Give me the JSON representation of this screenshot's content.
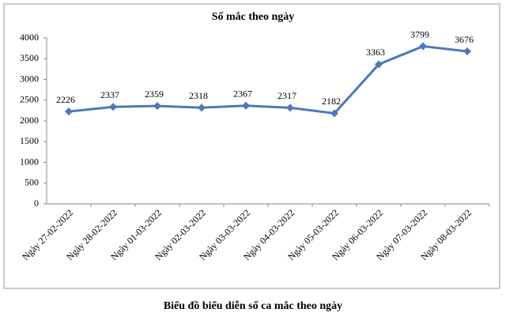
{
  "chart_data": {
    "type": "line",
    "title": "Số mắc theo ngày",
    "caption": "Biểu đồ biểu diễn số ca mắc theo ngày",
    "categories": [
      "Ngày 27-02-2022",
      "Ngày 28-02-2022",
      "Ngày 01-03-2022",
      "Ngày 02-03-2022",
      "Ngày 03-03-2022",
      "Ngày 04-03-2022",
      "Ngày 05-03-2022",
      "Ngày 06-03-2022",
      "Ngày 07-03-2022",
      "Ngày 08-03-2022"
    ],
    "values": [
      2226,
      2337,
      2359,
      2318,
      2367,
      2317,
      2182,
      3363,
      3799,
      3676
    ],
    "color": "#4a7ab8",
    "ylim": [
      0,
      4000
    ],
    "yticks": [
      0,
      500,
      1000,
      1500,
      2000,
      2500,
      3000,
      3500,
      4000
    ],
    "grid": false
  }
}
